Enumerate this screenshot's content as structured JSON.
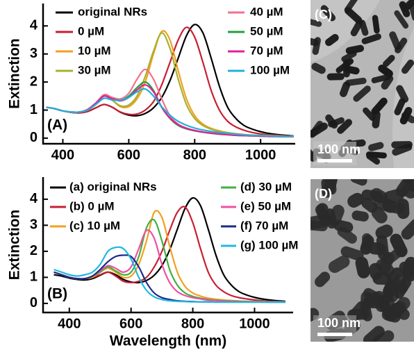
{
  "chart_data": [
    {
      "type": "line",
      "label": "(A)",
      "ylabel": "Extinction",
      "x": [
        350,
        375,
        400,
        425,
        450,
        475,
        500,
        525,
        550,
        575,
        600,
        625,
        650,
        675,
        700,
        725,
        750,
        775,
        800,
        825,
        850,
        875,
        900,
        925,
        950,
        975,
        1000,
        1025,
        1050,
        1075,
        1100
      ],
      "xlim": [
        340,
        1105
      ],
      "ylim": [
        -0.2,
        4.8
      ],
      "xticks": [
        400,
        600,
        800,
        1000
      ],
      "yticks": [
        0,
        1,
        2,
        3,
        4
      ],
      "series": [
        {
          "name": "original NRs",
          "color": "#000000",
          "values": [
            1.1,
            1.05,
            0.97,
            0.92,
            0.9,
            0.95,
            1.08,
            1.2,
            1.1,
            0.92,
            0.82,
            0.8,
            0.88,
            1.08,
            1.45,
            2.05,
            2.85,
            3.65,
            4.05,
            3.75,
            2.85,
            1.85,
            1.1,
            0.7,
            0.45,
            0.32,
            0.23,
            0.17,
            0.13,
            0.1,
            0.08
          ]
        },
        {
          "name": "0 µM",
          "color": "#c81e32",
          "values": [
            1.1,
            1.05,
            0.97,
            0.92,
            0.9,
            0.95,
            1.08,
            1.2,
            1.1,
            0.93,
            0.85,
            0.86,
            1.0,
            1.3,
            1.9,
            2.7,
            3.5,
            3.95,
            3.6,
            2.7,
            1.7,
            1.0,
            0.6,
            0.4,
            0.28,
            0.2,
            0.15,
            0.12,
            0.1,
            0.08,
            0.07
          ]
        },
        {
          "name": "10 µM",
          "color": "#f0a020",
          "values": [
            1.1,
            1.05,
            0.97,
            0.93,
            0.93,
            1.0,
            1.2,
            1.5,
            1.35,
            1.12,
            1.12,
            1.4,
            2.0,
            3.0,
            3.8,
            3.5,
            2.4,
            1.4,
            0.8,
            0.5,
            0.35,
            0.26,
            0.2,
            0.16,
            0.13,
            0.11,
            0.1,
            0.09,
            0.08,
            0.07,
            0.06
          ]
        },
        {
          "name": "30 µM",
          "color": "#a8b030",
          "values": [
            1.1,
            1.05,
            0.97,
            0.93,
            0.93,
            1.0,
            1.2,
            1.5,
            1.35,
            1.15,
            1.18,
            1.5,
            2.2,
            3.1,
            3.75,
            3.2,
            2.1,
            1.2,
            0.7,
            0.45,
            0.32,
            0.24,
            0.19,
            0.15,
            0.12,
            0.1,
            0.09,
            0.08,
            0.07,
            0.06,
            0.05
          ]
        },
        {
          "name": "40 µM",
          "color": "#f07090",
          "values": [
            1.1,
            1.05,
            0.97,
            0.93,
            0.93,
            1.02,
            1.25,
            1.55,
            1.45,
            1.4,
            1.6,
            2.1,
            2.45,
            2.1,
            1.4,
            0.8,
            0.5,
            0.36,
            0.28,
            0.22,
            0.18,
            0.15,
            0.13,
            0.11,
            0.1,
            0.09,
            0.08,
            0.07,
            0.06,
            0.06,
            0.05
          ]
        },
        {
          "name": "50 µM",
          "color": "#20a040",
          "values": [
            1.1,
            1.05,
            0.97,
            0.93,
            0.93,
            1.02,
            1.25,
            1.5,
            1.4,
            1.35,
            1.5,
            1.8,
            2.0,
            1.7,
            1.1,
            0.7,
            0.45,
            0.33,
            0.26,
            0.21,
            0.17,
            0.14,
            0.12,
            0.1,
            0.09,
            0.08,
            0.07,
            0.06,
            0.06,
            0.05,
            0.05
          ]
        },
        {
          "name": "70 µM",
          "color": "#e0209a",
          "values": [
            1.1,
            1.05,
            0.97,
            0.93,
            0.93,
            1.02,
            1.25,
            1.5,
            1.4,
            1.33,
            1.45,
            1.72,
            1.9,
            1.65,
            1.1,
            0.72,
            0.48,
            0.35,
            0.27,
            0.22,
            0.18,
            0.15,
            0.12,
            0.1,
            0.09,
            0.08,
            0.07,
            0.06,
            0.06,
            0.05,
            0.05
          ]
        },
        {
          "name": "100 µM",
          "color": "#20b0d8",
          "values": [
            1.1,
            1.05,
            0.97,
            0.93,
            0.93,
            1.0,
            1.2,
            1.42,
            1.36,
            1.35,
            1.45,
            1.65,
            1.75,
            1.5,
            1.12,
            0.82,
            0.6,
            0.46,
            0.36,
            0.29,
            0.24,
            0.2,
            0.17,
            0.14,
            0.12,
            0.1,
            0.09,
            0.08,
            0.07,
            0.06,
            0.06
          ]
        }
      ]
    },
    {
      "type": "line",
      "label": "(B)",
      "ylabel": "Extinction",
      "xlabel": "Wavelength (nm)",
      "x": [
        350,
        375,
        400,
        425,
        450,
        475,
        500,
        525,
        550,
        575,
        600,
        625,
        650,
        675,
        700,
        725,
        750,
        775,
        800,
        825,
        850,
        875,
        900,
        925,
        950,
        975,
        1000,
        1025,
        1050,
        1075,
        1100
      ],
      "xlim": [
        315,
        1125
      ],
      "ylim": [
        -0.35,
        4.85
      ],
      "xticks": [
        400,
        600,
        800,
        1000
      ],
      "yticks": [
        0,
        1,
        2,
        3,
        4
      ],
      "series": [
        {
          "name": "(a) original NRs",
          "color": "#000000",
          "values": [
            1.1,
            1.05,
            0.97,
            0.92,
            0.9,
            0.95,
            1.08,
            1.2,
            1.1,
            0.92,
            0.82,
            0.8,
            0.88,
            1.08,
            1.45,
            2.05,
            2.85,
            3.65,
            4.05,
            3.75,
            2.85,
            1.85,
            1.1,
            0.7,
            0.45,
            0.32,
            0.23,
            0.17,
            0.13,
            0.1,
            0.08
          ]
        },
        {
          "name": "(b) 0 µM",
          "color": "#c81e32",
          "values": [
            1.2,
            1.1,
            1.0,
            0.95,
            0.95,
            1.0,
            1.1,
            1.2,
            1.05,
            0.85,
            0.8,
            0.85,
            1.0,
            1.4,
            2.0,
            2.8,
            3.5,
            3.7,
            3.1,
            2.1,
            1.2,
            0.7,
            0.45,
            0.3,
            0.22,
            0.17,
            0.13,
            0.1,
            0.08,
            0.07,
            0.06
          ]
        },
        {
          "name": "(c) 10 µM",
          "color": "#f0a020",
          "values": [
            1.2,
            1.1,
            1.0,
            0.95,
            0.95,
            1.0,
            1.2,
            1.35,
            1.2,
            1.0,
            1.05,
            1.5,
            2.4,
            3.5,
            3.3,
            2.2,
            1.2,
            0.65,
            0.4,
            0.28,
            0.2,
            0.16,
            0.13,
            0.11,
            0.09,
            0.08,
            0.07,
            0.07,
            0.06,
            0.06,
            0.06
          ]
        },
        {
          "name": "(d) 30 µM",
          "color": "#40b040",
          "values": [
            1.2,
            1.1,
            1.0,
            0.95,
            0.95,
            1.05,
            1.2,
            1.4,
            1.25,
            1.1,
            1.2,
            1.8,
            2.9,
            3.2,
            2.4,
            1.3,
            0.7,
            0.4,
            0.27,
            0.2,
            0.15,
            0.12,
            0.1,
            0.09,
            0.08,
            0.07,
            0.06,
            0.06,
            0.05,
            0.05,
            0.05
          ]
        },
        {
          "name": "(e) 50 µM",
          "color": "#f050a0",
          "values": [
            1.2,
            1.1,
            1.0,
            0.95,
            0.95,
            1.05,
            1.25,
            1.45,
            1.35,
            1.2,
            1.4,
            2.1,
            2.8,
            2.5,
            1.5,
            0.8,
            0.45,
            0.3,
            0.22,
            0.17,
            0.13,
            0.11,
            0.09,
            0.08,
            0.07,
            0.06,
            0.06,
            0.05,
            0.05,
            0.05,
            0.05
          ]
        },
        {
          "name": "(f) 70 µM",
          "color": "#1a2a8a",
          "values": [
            1.2,
            1.1,
            1.0,
            0.95,
            0.95,
            1.05,
            1.3,
            1.6,
            1.8,
            1.85,
            1.8,
            1.4,
            0.8,
            0.4,
            0.22,
            0.15,
            0.1,
            0.08,
            0.07,
            0.06,
            0.06,
            0.05,
            0.05,
            0.05,
            0.05,
            0.05,
            0.05,
            0.05,
            0.05,
            0.05,
            0.05
          ]
        },
        {
          "name": "(g) 100 µM",
          "color": "#20b8e0",
          "values": [
            1.3,
            1.2,
            1.1,
            1.05,
            1.1,
            1.2,
            1.5,
            2.0,
            2.15,
            2.1,
            1.7,
            1.0,
            0.5,
            0.25,
            0.15,
            0.1,
            0.08,
            0.07,
            0.06,
            0.06,
            0.05,
            0.05,
            0.05,
            0.05,
            0.05,
            0.05,
            0.05,
            0.05,
            0.05,
            0.05,
            0.05
          ]
        }
      ]
    }
  ],
  "images": [
    {
      "label": "(C)",
      "scale_bar": "100 nm"
    },
    {
      "label": "(D)",
      "scale_bar": "100 nm"
    }
  ]
}
